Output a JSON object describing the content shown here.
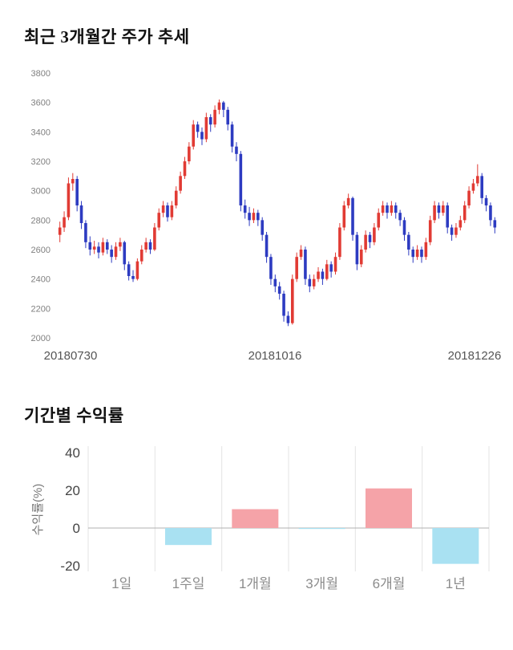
{
  "price_section": {
    "title": "최근 3개월간 주가 추세"
  },
  "returns_section": {
    "title": "기간별 수익률"
  },
  "chart_data": [
    {
      "type": "candlestick",
      "title": "최근 3개월간 주가 추세",
      "ylim": [
        2000,
        3800
      ],
      "yticks": [
        3800,
        3600,
        3400,
        3200,
        3000,
        2800,
        2600,
        2400,
        2200,
        2000
      ],
      "xticklabels": [
        "20180730",
        "20181016",
        "20181226"
      ],
      "up_color": "#e13b34",
      "down_color": "#2d3bc1",
      "candles": [
        [
          2700,
          2790,
          2650,
          2750
        ],
        [
          2750,
          2860,
          2720,
          2820
        ],
        [
          2820,
          3090,
          2800,
          3050
        ],
        [
          3050,
          3120,
          3000,
          3080
        ],
        [
          3080,
          3100,
          2860,
          2900
        ],
        [
          2900,
          2930,
          2740,
          2780
        ],
        [
          2780,
          2800,
          2610,
          2650
        ],
        [
          2650,
          2690,
          2560,
          2600
        ],
        [
          2600,
          2660,
          2570,
          2620
        ],
        [
          2620,
          2650,
          2540,
          2580
        ],
        [
          2580,
          2680,
          2560,
          2650
        ],
        [
          2650,
          2670,
          2570,
          2600
        ],
        [
          2600,
          2630,
          2510,
          2550
        ],
        [
          2550,
          2650,
          2530,
          2620
        ],
        [
          2620,
          2680,
          2590,
          2650
        ],
        [
          2650,
          2660,
          2460,
          2500
        ],
        [
          2500,
          2520,
          2390,
          2420
        ],
        [
          2420,
          2460,
          2380,
          2400
        ],
        [
          2400,
          2540,
          2390,
          2520
        ],
        [
          2520,
          2630,
          2500,
          2600
        ],
        [
          2600,
          2680,
          2580,
          2650
        ],
        [
          2650,
          2670,
          2570,
          2600
        ],
        [
          2600,
          2780,
          2590,
          2750
        ],
        [
          2750,
          2880,
          2730,
          2850
        ],
        [
          2850,
          2930,
          2820,
          2900
        ],
        [
          2900,
          2920,
          2790,
          2820
        ],
        [
          2820,
          2930,
          2800,
          2900
        ],
        [
          2900,
          3030,
          2880,
          3000
        ],
        [
          3000,
          3130,
          2980,
          3100
        ],
        [
          3100,
          3230,
          3080,
          3200
        ],
        [
          3200,
          3330,
          3180,
          3300
        ],
        [
          3300,
          3480,
          3280,
          3450
        ],
        [
          3450,
          3470,
          3360,
          3400
        ],
        [
          3400,
          3430,
          3310,
          3350
        ],
        [
          3350,
          3530,
          3330,
          3500
        ],
        [
          3500,
          3520,
          3400,
          3450
        ],
        [
          3450,
          3580,
          3430,
          3550
        ],
        [
          3550,
          3620,
          3520,
          3600
        ],
        [
          3600,
          3610,
          3500,
          3550
        ],
        [
          3550,
          3570,
          3410,
          3450
        ],
        [
          3450,
          3470,
          3260,
          3300
        ],
        [
          3300,
          3330,
          3200,
          3250
        ],
        [
          3250,
          3270,
          2860,
          2900
        ],
        [
          2900,
          2940,
          2810,
          2850
        ],
        [
          2850,
          2890,
          2760,
          2800
        ],
        [
          2800,
          2880,
          2780,
          2850
        ],
        [
          2850,
          2870,
          2760,
          2800
        ],
        [
          2800,
          2820,
          2660,
          2700
        ],
        [
          2700,
          2720,
          2510,
          2550
        ],
        [
          2550,
          2570,
          2360,
          2400
        ],
        [
          2400,
          2430,
          2310,
          2350
        ],
        [
          2350,
          2380,
          2260,
          2300
        ],
        [
          2300,
          2320,
          2110,
          2150
        ],
        [
          2150,
          2180,
          2080,
          2100
        ],
        [
          2100,
          2430,
          2090,
          2400
        ],
        [
          2400,
          2580,
          2380,
          2550
        ],
        [
          2550,
          2630,
          2530,
          2600
        ],
        [
          2600,
          2620,
          2360,
          2400
        ],
        [
          2400,
          2430,
          2310,
          2350
        ],
        [
          2350,
          2430,
          2330,
          2400
        ],
        [
          2400,
          2480,
          2380,
          2450
        ],
        [
          2450,
          2470,
          2360,
          2400
        ],
        [
          2400,
          2530,
          2390,
          2500
        ],
        [
          2500,
          2520,
          2410,
          2450
        ],
        [
          2450,
          2580,
          2430,
          2550
        ],
        [
          2550,
          2780,
          2530,
          2750
        ],
        [
          2750,
          2930,
          2730,
          2900
        ],
        [
          2900,
          2980,
          2880,
          2950
        ],
        [
          2950,
          2960,
          2660,
          2700
        ],
        [
          2700,
          2720,
          2460,
          2500
        ],
        [
          2500,
          2630,
          2480,
          2600
        ],
        [
          2600,
          2730,
          2580,
          2700
        ],
        [
          2700,
          2720,
          2610,
          2650
        ],
        [
          2650,
          2780,
          2630,
          2750
        ],
        [
          2750,
          2880,
          2730,
          2850
        ],
        [
          2850,
          2930,
          2830,
          2900
        ],
        [
          2900,
          2920,
          2810,
          2850
        ],
        [
          2850,
          2930,
          2830,
          2900
        ],
        [
          2900,
          2920,
          2810,
          2850
        ],
        [
          2850,
          2870,
          2760,
          2800
        ],
        [
          2800,
          2820,
          2660,
          2700
        ],
        [
          2700,
          2720,
          2560,
          2600
        ],
        [
          2600,
          2620,
          2510,
          2550
        ],
        [
          2550,
          2630,
          2530,
          2600
        ],
        [
          2600,
          2620,
          2510,
          2550
        ],
        [
          2550,
          2680,
          2530,
          2650
        ],
        [
          2650,
          2830,
          2630,
          2800
        ],
        [
          2800,
          2930,
          2780,
          2900
        ],
        [
          2900,
          2920,
          2810,
          2850
        ],
        [
          2850,
          2930,
          2830,
          2900
        ],
        [
          2900,
          2920,
          2710,
          2750
        ],
        [
          2750,
          2770,
          2660,
          2700
        ],
        [
          2700,
          2780,
          2680,
          2750
        ],
        [
          2750,
          2830,
          2730,
          2800
        ],
        [
          2800,
          2930,
          2780,
          2900
        ],
        [
          2900,
          3030,
          2880,
          3000
        ],
        [
          3000,
          3080,
          2980,
          3050
        ],
        [
          3050,
          3180,
          3030,
          3100
        ],
        [
          3100,
          3120,
          2910,
          2950
        ],
        [
          2950,
          2970,
          2860,
          2900
        ],
        [
          2900,
          2920,
          2760,
          2800
        ],
        [
          2800,
          2820,
          2710,
          2750
        ]
      ]
    },
    {
      "type": "bar",
      "title": "기간별 수익률",
      "categories": [
        "1일",
        "1주일",
        "1개월",
        "3개월",
        "6개월",
        "1년"
      ],
      "values": [
        0,
        -9,
        10,
        -0.5,
        21,
        -19
      ],
      "ylabel": "수익률(%)",
      "ylim": [
        -20,
        40
      ],
      "yticks": [
        40,
        20,
        0,
        -20
      ],
      "positive_color": "#f5a3a8",
      "negative_color": "#a9e1f2",
      "grid_color": "#e3e3e3",
      "zero_line_color": "#b0b0b0"
    }
  ]
}
